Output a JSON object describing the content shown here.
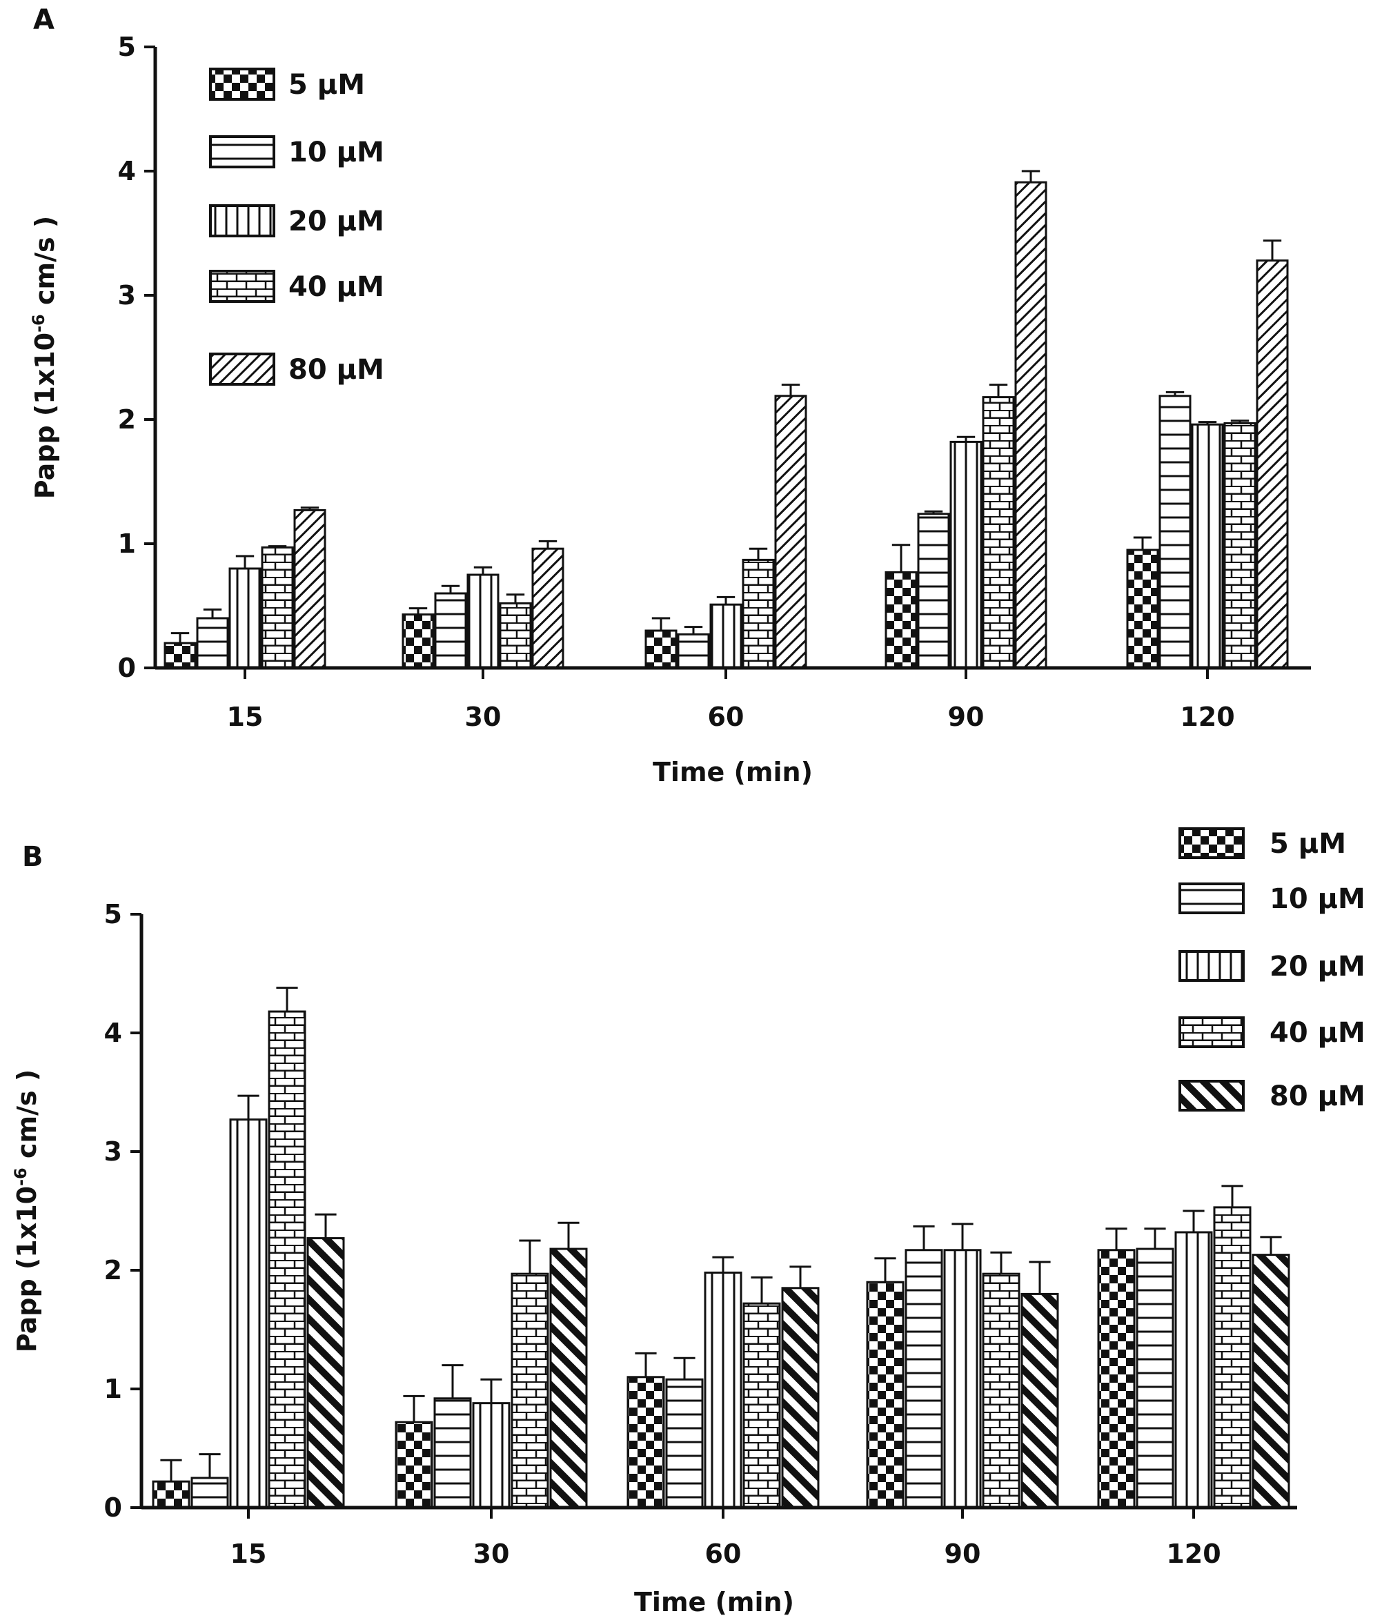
{
  "chart_data": [
    {
      "panel": "A",
      "type": "bar",
      "title": "",
      "xlabel": "Time (min)",
      "ylabel": "Papp (1x10",
      "ylabel_superscript": "-6",
      "ylabel_suffix": " cm/s )",
      "ylim": [
        0,
        5
      ],
      "yticks": [
        "0",
        "1",
        "2",
        "3",
        "4",
        "5"
      ],
      "categories": [
        "15",
        "30",
        "60",
        "90",
        "120"
      ],
      "legend_position": "top-left",
      "series": [
        {
          "name": "5 μM",
          "values": [
            0.2,
            0.43,
            0.3,
            0.77,
            0.95
          ],
          "errors": [
            0.08,
            0.05,
            0.1,
            0.22,
            0.1
          ]
        },
        {
          "name": "10 μM",
          "values": [
            0.4,
            0.6,
            0.27,
            1.24,
            2.19
          ],
          "errors": [
            0.07,
            0.06,
            0.06,
            0.02,
            0.03
          ]
        },
        {
          "name": "20 μM",
          "values": [
            0.8,
            0.75,
            0.51,
            1.82,
            1.96
          ],
          "errors": [
            0.1,
            0.06,
            0.06,
            0.04,
            0.02
          ]
        },
        {
          "name": "40 μM",
          "values": [
            0.97,
            0.52,
            0.87,
            2.18,
            1.97
          ],
          "errors": [
            0.01,
            0.07,
            0.09,
            0.1,
            0.02
          ]
        },
        {
          "name": "80 μM",
          "values": [
            1.27,
            0.96,
            2.19,
            3.91,
            3.28
          ],
          "errors": [
            0.02,
            0.06,
            0.09,
            0.09,
            0.16
          ]
        }
      ]
    },
    {
      "panel": "B",
      "type": "bar",
      "title": "",
      "xlabel": "Time (min)",
      "ylabel": "Papp (1x10",
      "ylabel_superscript": "-6",
      "ylabel_suffix": " cm/s )",
      "ylim": [
        0,
        5
      ],
      "yticks": [
        "0",
        "1",
        "2",
        "3",
        "4",
        "5"
      ],
      "categories": [
        "15",
        "30",
        "60",
        "90",
        "120"
      ],
      "legend_position": "top-right",
      "series": [
        {
          "name": "5 μM",
          "values": [
            0.22,
            0.72,
            1.1,
            1.9,
            2.17
          ],
          "errors": [
            0.18,
            0.22,
            0.2,
            0.2,
            0.18
          ]
        },
        {
          "name": "10 μM",
          "values": [
            0.25,
            0.92,
            1.08,
            2.17,
            2.18
          ],
          "errors": [
            0.2,
            0.28,
            0.18,
            0.2,
            0.17
          ]
        },
        {
          "name": "20 μM",
          "values": [
            3.27,
            0.88,
            1.98,
            2.17,
            2.32
          ],
          "errors": [
            0.2,
            0.2,
            0.13,
            0.22,
            0.18
          ]
        },
        {
          "name": "40 μM",
          "values": [
            4.18,
            1.97,
            1.72,
            1.97,
            2.53
          ],
          "errors": [
            0.2,
            0.28,
            0.22,
            0.18,
            0.18
          ]
        },
        {
          "name": "80 μM",
          "values": [
            2.27,
            2.18,
            1.85,
            1.8,
            2.13
          ],
          "errors": [
            0.2,
            0.22,
            0.18,
            0.27,
            0.15
          ]
        }
      ]
    }
  ]
}
